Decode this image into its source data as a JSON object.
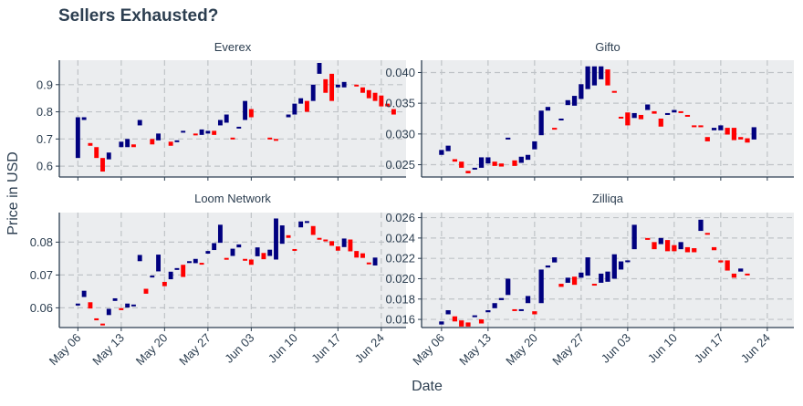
{
  "title": "Sellers Exhausted?",
  "xlabel": "Date",
  "ylabel": "Price in USD",
  "colors": {
    "up": "#00007f",
    "down": "#ff0000",
    "panel_bg": "#ebedef",
    "text": "#2c3e50"
  },
  "x_ticks": [
    "May 06",
    "May 13",
    "May 20",
    "May 27",
    "Jun 03",
    "Jun 10",
    "Jun 17",
    "Jun 24"
  ],
  "chart_data": [
    {
      "type": "bar",
      "subtitle": "Everex",
      "x_axis": "day (May 06 = 0)",
      "ylim": [
        0.56,
        0.99
      ],
      "yticks": [
        0.6,
        0.7,
        0.8,
        0.9
      ],
      "ytick_labels": [
        "0.6",
        "0.7",
        "0.8",
        "0.9"
      ],
      "candles": [
        [
          0,
          0.63,
          0.78
        ],
        [
          1,
          0.77,
          0.78
        ],
        [
          2,
          0.675,
          0.685
        ],
        [
          3,
          0.63,
          0.67
        ],
        [
          4,
          0.58,
          0.63
        ],
        [
          5,
          0.625,
          0.65
        ],
        [
          7,
          0.67,
          0.69
        ],
        [
          8,
          0.67,
          0.7
        ],
        [
          9,
          0.67,
          0.68
        ],
        [
          10,
          0.75,
          0.77
        ],
        [
          12,
          0.68,
          0.7
        ],
        [
          13,
          0.695,
          0.72
        ],
        [
          15,
          0.675,
          0.69
        ],
        [
          16,
          0.69,
          0.695
        ],
        [
          17,
          0.725,
          0.73
        ],
        [
          19,
          0.715,
          0.72
        ],
        [
          20,
          0.715,
          0.735
        ],
        [
          21,
          0.72,
          0.73
        ],
        [
          22,
          0.715,
          0.73
        ],
        [
          23,
          0.75,
          0.77
        ],
        [
          24,
          0.76,
          0.79
        ],
        [
          25,
          0.7,
          0.705
        ],
        [
          26,
          0.74,
          0.745
        ],
        [
          27,
          0.77,
          0.84
        ],
        [
          28,
          0.78,
          0.81
        ],
        [
          31,
          0.7,
          0.705
        ],
        [
          32,
          0.695,
          0.7
        ],
        [
          34,
          0.78,
          0.79
        ],
        [
          35,
          0.79,
          0.83
        ],
        [
          36,
          0.83,
          0.85
        ],
        [
          37,
          0.8,
          0.84
        ],
        [
          38,
          0.84,
          0.9
        ],
        [
          39,
          0.94,
          0.98
        ],
        [
          40,
          0.87,
          0.92
        ],
        [
          41,
          0.84,
          0.94
        ],
        [
          42,
          0.89,
          0.9
        ],
        [
          43,
          0.89,
          0.91
        ],
        [
          45,
          0.895,
          0.9
        ],
        [
          46,
          0.87,
          0.89
        ],
        [
          47,
          0.85,
          0.88
        ],
        [
          48,
          0.84,
          0.87
        ],
        [
          49,
          0.82,
          0.86
        ],
        [
          50,
          0.82,
          0.83
        ],
        [
          51,
          0.79,
          0.81
        ]
      ]
    },
    {
      "type": "bar",
      "subtitle": "Gifto",
      "x_axis": "day (May 06 = 0)",
      "ylim": [
        0.023,
        0.042
      ],
      "yticks": [
        0.025,
        0.03,
        0.035,
        0.04
      ],
      "ytick_labels": [
        "0.025",
        "0.030",
        "0.035",
        "0.040"
      ],
      "candles": [
        [
          0,
          0.0266,
          0.0274
        ],
        [
          1,
          0.0272,
          0.0281
        ],
        [
          2,
          0.0255,
          0.0259
        ],
        [
          3,
          0.0245,
          0.0255
        ],
        [
          4,
          0.0236,
          0.024
        ],
        [
          5,
          0.0243,
          0.0245
        ],
        [
          6,
          0.0245,
          0.0262
        ],
        [
          7,
          0.0252,
          0.0262
        ],
        [
          8,
          0.0248,
          0.0255
        ],
        [
          9,
          0.0247,
          0.0252
        ],
        [
          10,
          0.0293,
          0.0294
        ],
        [
          11,
          0.0248,
          0.0257
        ],
        [
          12,
          0.0253,
          0.0263
        ],
        [
          13,
          0.0258,
          0.0266
        ],
        [
          14,
          0.0275,
          0.0288
        ],
        [
          15,
          0.0298,
          0.0338
        ],
        [
          16,
          0.0338,
          0.0344
        ],
        [
          17,
          0.0308,
          0.031
        ],
        [
          18,
          0.0324,
          0.0325
        ],
        [
          19,
          0.0347,
          0.0355
        ],
        [
          20,
          0.0346,
          0.0362
        ],
        [
          21,
          0.0357,
          0.0381
        ],
        [
          22,
          0.0373,
          0.041
        ],
        [
          23,
          0.0379,
          0.041
        ],
        [
          24,
          0.0389,
          0.041
        ],
        [
          25,
          0.0379,
          0.0405
        ],
        [
          26,
          0.0368,
          0.037
        ],
        [
          27,
          0.0326,
          0.0328
        ],
        [
          28,
          0.0314,
          0.0335
        ],
        [
          29,
          0.0326,
          0.0334
        ],
        [
          30,
          0.0324,
          0.0331
        ],
        [
          31,
          0.0339,
          0.0348
        ],
        [
          32,
          0.0333,
          0.0337
        ],
        [
          33,
          0.0312,
          0.0325
        ],
        [
          34,
          0.0331,
          0.0334
        ],
        [
          35,
          0.0335,
          0.0339
        ],
        [
          36,
          0.0335,
          0.0337
        ],
        [
          37,
          0.0328,
          0.0331
        ],
        [
          38,
          0.0312,
          0.0314
        ],
        [
          39,
          0.0311,
          0.0314
        ],
        [
          40,
          0.0288,
          0.0295
        ],
        [
          41,
          0.0306,
          0.031
        ],
        [
          42,
          0.0306,
          0.0314
        ],
        [
          43,
          0.0299,
          0.031
        ],
        [
          44,
          0.029,
          0.031
        ],
        [
          45,
          0.0291,
          0.0295
        ],
        [
          46,
          0.0286,
          0.0293
        ],
        [
          47,
          0.0291,
          0.0311
        ]
      ]
    },
    {
      "type": "bar",
      "subtitle": "Loom Network",
      "x_axis": "day (May 06 = 0)",
      "ylim": [
        0.054,
        0.089
      ],
      "yticks": [
        0.06,
        0.07,
        0.08
      ],
      "ytick_labels": [
        "0.06",
        "0.07",
        "0.08"
      ],
      "candles": [
        [
          0,
          0.0607,
          0.0613
        ],
        [
          1,
          0.0633,
          0.0652
        ],
        [
          2,
          0.0598,
          0.0617
        ],
        [
          3,
          0.0562,
          0.0568
        ],
        [
          4,
          0.0548,
          0.0552
        ],
        [
          5,
          0.0578,
          0.0597
        ],
        [
          6,
          0.0621,
          0.0629
        ],
        [
          7,
          0.0593,
          0.0599
        ],
        [
          8,
          0.0601,
          0.0613
        ],
        [
          9,
          0.0605,
          0.061
        ],
        [
          10,
          0.0742,
          0.0761
        ],
        [
          11,
          0.0643,
          0.0658
        ],
        [
          12,
          0.0694,
          0.0698
        ],
        [
          13,
          0.0711,
          0.0762
        ],
        [
          14,
          0.0666,
          0.0679
        ],
        [
          15,
          0.0687,
          0.071
        ],
        [
          16,
          0.0718,
          0.0721
        ],
        [
          17,
          0.0694,
          0.0731
        ],
        [
          18,
          0.0739,
          0.0742
        ],
        [
          19,
          0.0736,
          0.0749
        ],
        [
          20,
          0.0733,
          0.0737
        ],
        [
          21,
          0.0765,
          0.0773
        ],
        [
          22,
          0.0776,
          0.0797
        ],
        [
          23,
          0.0798,
          0.0853
        ],
        [
          24,
          0.0747,
          0.0752
        ],
        [
          25,
          0.0758,
          0.078
        ],
        [
          26,
          0.0784,
          0.0793
        ],
        [
          27,
          0.0745,
          0.0749
        ],
        [
          28,
          0.0731,
          0.0747
        ],
        [
          29,
          0.0757,
          0.0784
        ],
        [
          30,
          0.0748,
          0.0767
        ],
        [
          31,
          0.0758,
          0.0777
        ],
        [
          32,
          0.0747,
          0.0872
        ],
        [
          33,
          0.0795,
          0.0851
        ],
        [
          34,
          0.0813,
          0.0821
        ],
        [
          35,
          0.0776,
          0.0779
        ],
        [
          36,
          0.0845,
          0.0863
        ],
        [
          37,
          0.0859,
          0.0864
        ],
        [
          38,
          0.0822,
          0.0849
        ],
        [
          39,
          0.0809,
          0.0813
        ],
        [
          40,
          0.0805,
          0.0808
        ],
        [
          41,
          0.0789,
          0.0803
        ],
        [
          42,
          0.0774,
          0.0787
        ],
        [
          43,
          0.0785,
          0.0811
        ],
        [
          44,
          0.0772,
          0.0808
        ],
        [
          45,
          0.0753,
          0.0773
        ],
        [
          46,
          0.0752,
          0.0766
        ],
        [
          47,
          0.0733,
          0.0738
        ],
        [
          48,
          0.0729,
          0.0753
        ]
      ]
    },
    {
      "type": "bar",
      "subtitle": "Zilliqa",
      "x_axis": "day (May 06 = 0)",
      "ylim": [
        0.0152,
        0.0265
      ],
      "yticks": [
        0.016,
        0.018,
        0.02,
        0.022,
        0.024,
        0.026
      ],
      "ytick_labels": [
        "0.016",
        "0.018",
        "0.020",
        "0.022",
        "0.024",
        "0.026"
      ],
      "candles": [
        [
          0,
          0.0155,
          0.0158
        ],
        [
          1,
          0.0165,
          0.0169
        ],
        [
          2,
          0.0158,
          0.0163
        ],
        [
          3,
          0.0153,
          0.0159
        ],
        [
          4,
          0.0153,
          0.0157
        ],
        [
          5,
          0.0163,
          0.0164
        ],
        [
          6,
          0.0156,
          0.016
        ],
        [
          7,
          0.0167,
          0.0169
        ],
        [
          8,
          0.0171,
          0.0176
        ],
        [
          9,
          0.0179,
          0.0181
        ],
        [
          10,
          0.0184,
          0.02
        ],
        [
          11,
          0.0169,
          0.017
        ],
        [
          12,
          0.0169,
          0.017
        ],
        [
          13,
          0.0176,
          0.0183
        ],
        [
          14,
          0.0165,
          0.0168
        ],
        [
          15,
          0.0176,
          0.0209
        ],
        [
          16,
          0.0211,
          0.0213
        ],
        [
          17,
          0.0216,
          0.0221
        ],
        [
          18,
          0.0192,
          0.0195
        ],
        [
          19,
          0.0196,
          0.0201
        ],
        [
          20,
          0.0194,
          0.0202
        ],
        [
          21,
          0.0201,
          0.0206
        ],
        [
          22,
          0.0203,
          0.0221
        ],
        [
          23,
          0.0194,
          0.0195
        ],
        [
          24,
          0.0196,
          0.0205
        ],
        [
          25,
          0.0197,
          0.0207
        ],
        [
          26,
          0.02,
          0.0224
        ],
        [
          27,
          0.0209,
          0.0217
        ],
        [
          28,
          0.0217,
          0.0218
        ],
        [
          29,
          0.0229,
          0.0253
        ],
        [
          31,
          0.0239,
          0.024
        ],
        [
          32,
          0.0229,
          0.0236
        ],
        [
          33,
          0.0234,
          0.024
        ],
        [
          34,
          0.0227,
          0.0238
        ],
        [
          35,
          0.0227,
          0.0233
        ],
        [
          36,
          0.0229,
          0.0236
        ],
        [
          37,
          0.0226,
          0.0231
        ],
        [
          38,
          0.0226,
          0.023
        ],
        [
          39,
          0.0247,
          0.0258
        ],
        [
          40,
          0.0244,
          0.0245
        ],
        [
          41,
          0.0228,
          0.0231
        ],
        [
          42,
          0.0216,
          0.0218
        ],
        [
          43,
          0.0208,
          0.0218
        ],
        [
          44,
          0.0201,
          0.0205
        ],
        [
          45,
          0.0207,
          0.021
        ],
        [
          46,
          0.0204,
          0.0205
        ]
      ]
    }
  ]
}
